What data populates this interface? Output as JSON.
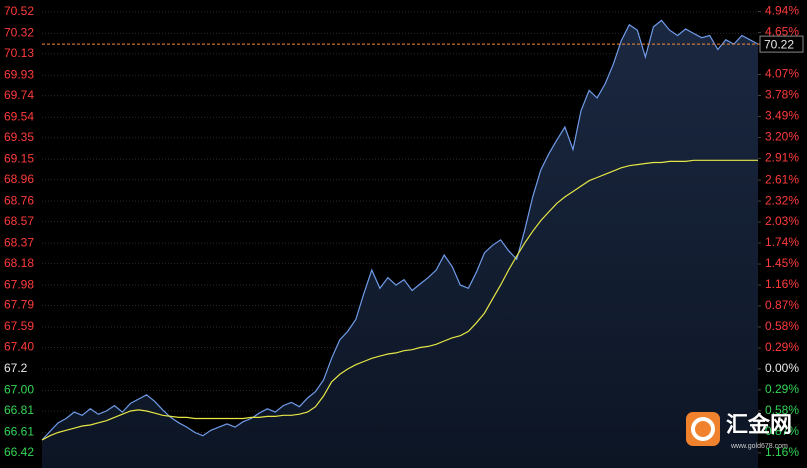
{
  "chart_data": {
    "type": "line",
    "x": [
      0,
      1,
      2,
      3,
      4,
      5,
      6,
      7,
      8,
      9,
      10,
      11,
      12,
      13,
      14,
      15,
      16,
      17,
      18,
      19,
      20,
      21,
      22,
      23,
      24,
      25,
      26,
      27,
      28,
      29,
      30,
      31,
      32,
      33,
      34,
      35,
      36,
      37,
      38,
      39,
      40,
      41,
      42,
      43,
      44,
      45,
      46,
      47,
      48,
      49,
      50,
      51,
      52,
      53,
      54,
      55,
      56,
      57,
      58,
      59,
      60,
      61,
      62,
      63,
      64,
      65,
      66,
      67,
      68,
      69,
      70,
      71,
      72,
      73,
      74,
      75,
      76,
      77,
      78,
      79,
      80,
      81,
      82,
      83,
      84,
      85,
      86,
      87,
      88,
      89
    ],
    "xlim": [
      0,
      89
    ],
    "series": [
      {
        "color": "#6f9be8",
        "fill": true,
        "values": [
          66.54,
          66.62,
          66.7,
          66.74,
          66.8,
          66.77,
          66.83,
          66.78,
          66.81,
          66.86,
          66.8,
          66.88,
          66.92,
          66.96,
          66.9,
          66.82,
          66.75,
          66.7,
          66.66,
          66.61,
          66.58,
          66.63,
          66.66,
          66.69,
          66.66,
          66.71,
          66.74,
          66.79,
          66.83,
          66.8,
          66.86,
          66.89,
          66.85,
          66.93,
          66.99,
          67.1,
          67.3,
          67.47,
          67.55,
          67.66,
          67.9,
          68.12,
          67.95,
          68.05,
          67.98,
          68.03,
          67.93,
          67.99,
          68.05,
          68.12,
          68.26,
          68.15,
          67.98,
          67.95,
          68.1,
          68.28,
          68.35,
          68.4,
          68.3,
          68.22,
          68.49,
          68.8,
          69.05,
          69.2,
          69.33,
          69.45,
          69.24,
          69.6,
          69.79,
          69.72,
          69.85,
          70.03,
          70.25,
          70.4,
          70.35,
          70.1,
          70.38,
          70.44,
          70.35,
          70.3,
          70.36,
          70.32,
          70.28,
          70.3,
          70.17,
          70.26,
          70.22,
          70.3,
          70.26,
          70.22
        ]
      },
      {
        "color": "#e6e645",
        "fill": false,
        "values": [
          66.54,
          66.58,
          66.61,
          66.63,
          66.65,
          66.67,
          66.68,
          66.7,
          66.72,
          66.75,
          66.78,
          66.81,
          66.82,
          66.81,
          66.79,
          66.77,
          66.76,
          66.75,
          66.75,
          66.74,
          66.74,
          66.74,
          66.74,
          66.74,
          66.74,
          66.74,
          66.75,
          66.75,
          66.76,
          66.76,
          66.77,
          66.77,
          66.78,
          66.8,
          66.85,
          66.95,
          67.08,
          67.15,
          67.2,
          67.24,
          67.27,
          67.3,
          67.32,
          67.34,
          67.35,
          67.37,
          67.38,
          67.4,
          67.41,
          67.43,
          67.46,
          67.49,
          67.51,
          67.55,
          67.63,
          67.72,
          67.85,
          67.98,
          68.12,
          68.25,
          68.37,
          68.48,
          68.58,
          68.66,
          68.74,
          68.8,
          68.85,
          68.9,
          68.95,
          68.98,
          69.01,
          69.04,
          69.07,
          69.09,
          69.1,
          69.11,
          69.12,
          69.12,
          69.13,
          69.13,
          69.13,
          69.14,
          69.14,
          69.14,
          69.14,
          69.14,
          69.14,
          69.14,
          69.14,
          69.14
        ]
      }
    ],
    "ylim": [
      66.28,
      70.63
    ],
    "yticks": [
      70.52,
      70.32,
      70.13,
      69.93,
      69.74,
      69.54,
      69.35,
      69.15,
      68.96,
      68.76,
      68.57,
      68.37,
      68.18,
      67.98,
      67.79,
      67.59,
      {
        "value": 67.4,
        "label": "67.40"
      },
      67.2,
      {
        "value": 67.0,
        "label": "67.00"
      },
      66.81,
      66.61,
      66.42
    ],
    "y2lim": [
      -1.37,
      5.1
    ],
    "y2ticks": [
      {
        "value": 4.94,
        "label": "4.94%"
      },
      {
        "value": 4.65,
        "label": "4.65%"
      },
      {
        "value": 4.07,
        "label": "4.07%"
      },
      {
        "value": 3.78,
        "label": "3.78%"
      },
      {
        "value": 3.49,
        "label": "3.49%"
      },
      {
        "value": 3.2,
        "label": "3.20%"
      },
      {
        "value": 2.91,
        "label": "2.91%"
      },
      {
        "value": 2.61,
        "label": "2.61%"
      },
      {
        "value": 2.32,
        "label": "2.32%"
      },
      {
        "value": 2.03,
        "label": "2.03%"
      },
      {
        "value": 1.74,
        "label": "1.74%"
      },
      {
        "value": 1.45,
        "label": "1.45%"
      },
      {
        "value": 1.16,
        "label": "1.16%"
      },
      {
        "value": 0.87,
        "label": "0.87%"
      },
      {
        "value": 0.58,
        "label": "0.58%"
      },
      {
        "value": 0.29,
        "label": "0.29%"
      },
      {
        "value": 0,
        "label": "0.00%"
      },
      {
        "value": -0.29,
        "label": "0.29%"
      },
      {
        "value": -0.58,
        "label": "0.58%"
      },
      {
        "value": -0.87,
        "label": "0.87%"
      },
      {
        "value": -1.16,
        "label": "1.16%"
      }
    ],
    "grid": true,
    "up_color": "#ff3b3b",
    "down_color": "#33d655",
    "flat_color": "#e8e8e8",
    "reference_line": {
      "value": 70.22,
      "label": "70.22",
      "color": "#f5893a"
    },
    "watermark": {
      "name": "汇金网",
      "url": "www.gold678.com"
    }
  }
}
